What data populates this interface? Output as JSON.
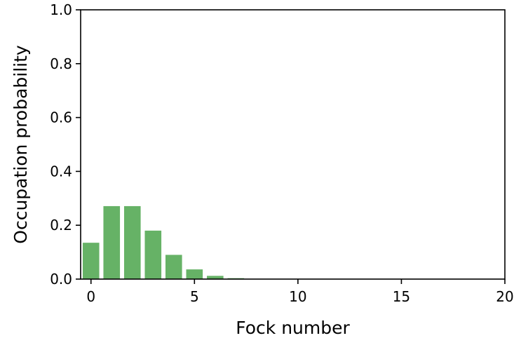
{
  "chart_data": {
    "type": "bar",
    "xlabel": "Fock number",
    "ylabel": "Occupation probability",
    "xlim": [
      -0.5,
      20
    ],
    "ylim": [
      0.0,
      1.0
    ],
    "x_ticks": [
      "0",
      "5",
      "10",
      "15",
      "20"
    ],
    "y_ticks": [
      "0.0",
      "0.2",
      "0.4",
      "0.6",
      "0.8",
      "1.0"
    ],
    "grid": false,
    "color": "#66b266",
    "x": [
      0,
      1,
      2,
      3,
      4,
      5,
      6,
      7,
      8,
      9,
      10,
      11,
      12,
      13,
      14,
      15,
      16,
      17,
      18,
      19
    ],
    "values": [
      0.135,
      0.271,
      0.271,
      0.18,
      0.09,
      0.036,
      0.012,
      0.0034,
      0.0009,
      0.0002,
      4e-05,
      1e-05,
      0,
      0,
      0,
      0,
      0,
      0,
      0,
      0
    ]
  }
}
